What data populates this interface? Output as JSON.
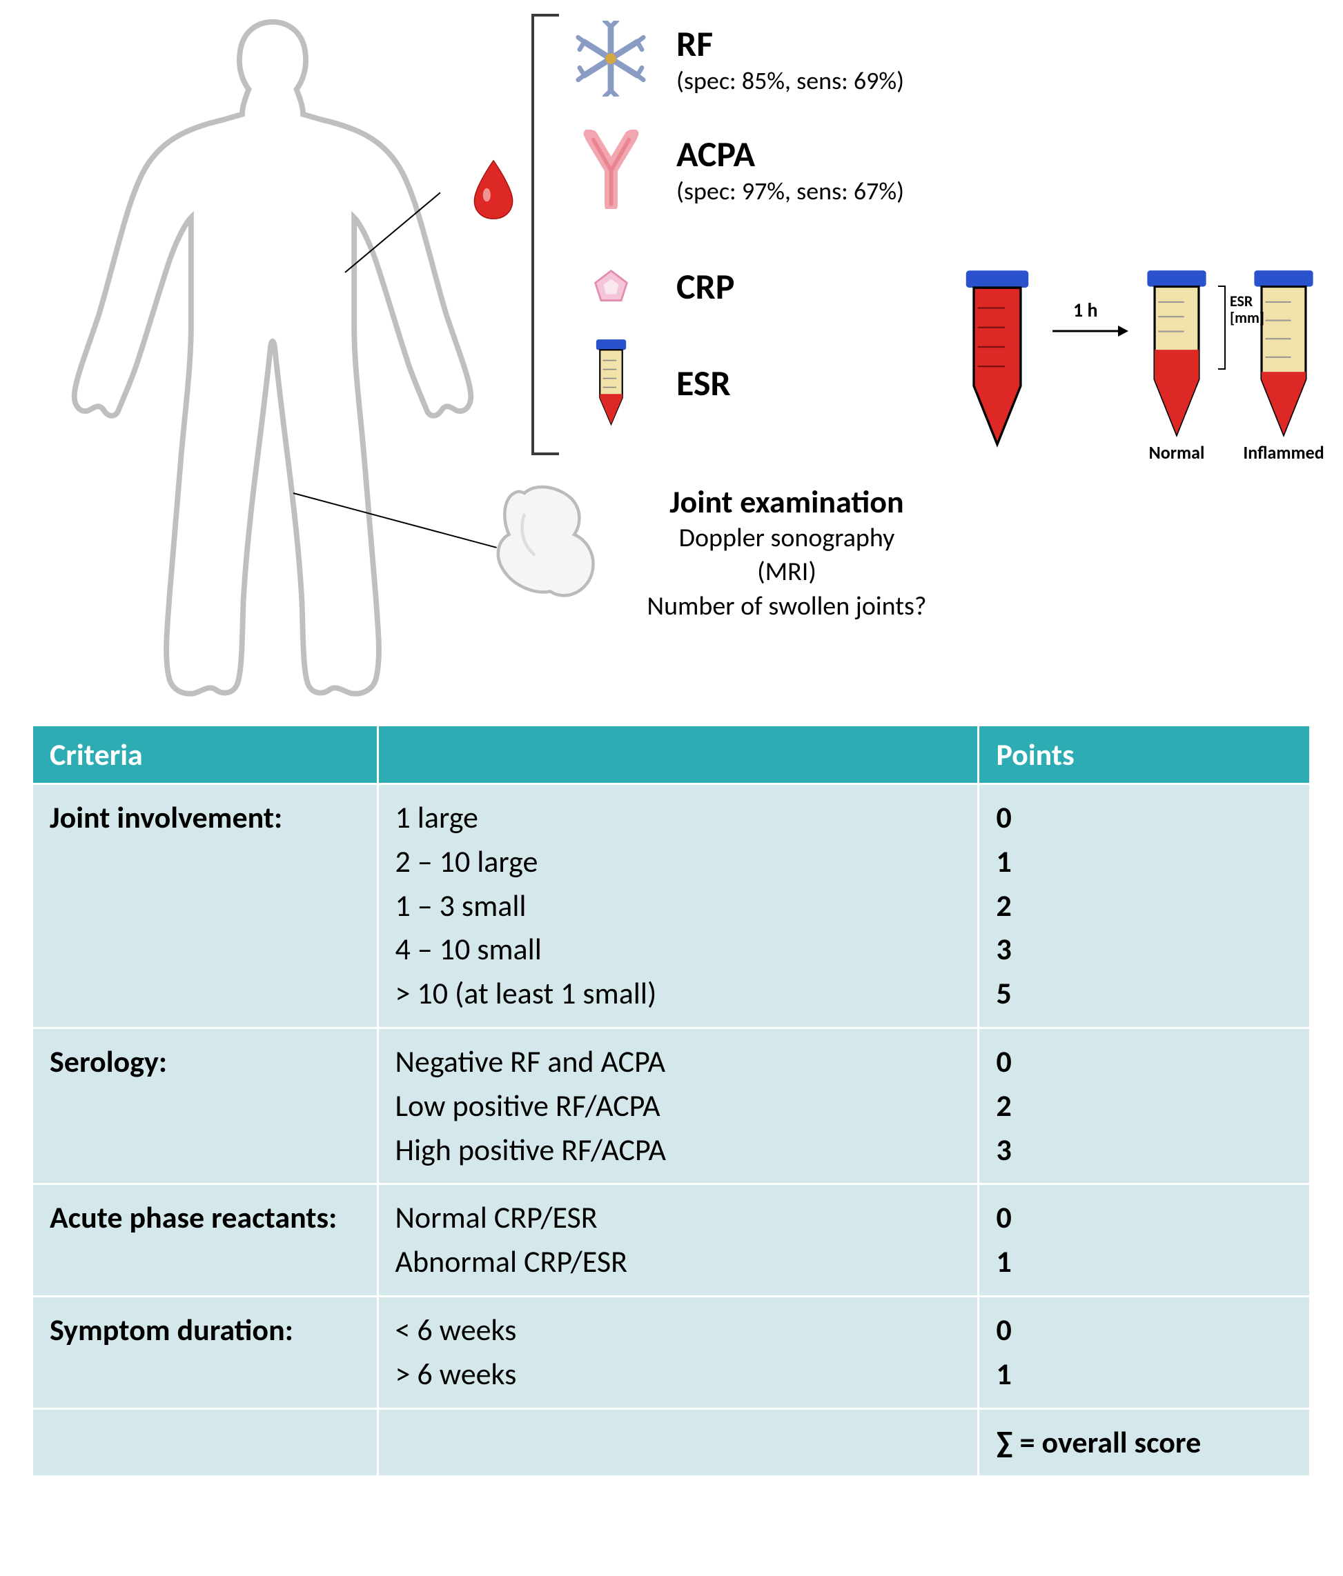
{
  "colors": {
    "table_header_bg": "#2eacb3",
    "table_header_text": "#ffffff",
    "table_cell_bg": "#d4e8eb",
    "table_cell_text": "#000000",
    "table_border": "#ffffff",
    "body_outline": "#cccccc",
    "blood_red": "#de2826",
    "tube_cap": "#2952cc",
    "tube_fluid": "#f0e2a8",
    "antibody_blue": "#8a9bc4",
    "antibody_pink": "#f2a7b0",
    "crp_pink": "#f4c4d8"
  },
  "markers": {
    "rf": {
      "title": "RF",
      "sub": "(spec: 85%, sens: 69%)"
    },
    "acpa": {
      "title": "ACPA",
      "sub": "(spec: 97%, sens: 67%)"
    },
    "crp": {
      "title": "CRP",
      "sub": ""
    },
    "esr": {
      "title": "ESR",
      "sub": ""
    }
  },
  "esr_diagram": {
    "time_label": "1 h",
    "measure_label": "ESR\n[mm]",
    "normal_label": "Normal",
    "inflamed_label": "Inflammed"
  },
  "joint_exam": {
    "title": "Joint examination",
    "line1": "Doppler sonography",
    "line2": "(MRI)",
    "line3": "Number of swollen joints?"
  },
  "table": {
    "headers": {
      "criteria": "Criteria",
      "middle": "",
      "points": "Points"
    },
    "rows": [
      {
        "label": "Joint involvement:",
        "items": [
          {
            "desc": "1 large",
            "points": "0"
          },
          {
            "desc": "2 – 10 large",
            "points": "1"
          },
          {
            "desc": "1 – 3 small",
            "points": "2"
          },
          {
            "desc": "4 – 10 small",
            "points": "3"
          },
          {
            "desc": "> 10 (at least 1 small)",
            "points": "5"
          }
        ]
      },
      {
        "label": "Serology:",
        "items": [
          {
            "desc": "Negative RF and ACPA",
            "points": "0"
          },
          {
            "desc": "Low positive RF/ACPA",
            "points": "2"
          },
          {
            "desc": "High positive RF/ACPA",
            "points": "3"
          }
        ]
      },
      {
        "label": "Acute phase reactants:",
        "items": [
          {
            "desc": "Normal CRP/ESR",
            "points": "0"
          },
          {
            "desc": "Abnormal CRP/ESR",
            "points": "1"
          }
        ]
      },
      {
        "label": "Symptom duration:",
        "items": [
          {
            "desc": "< 6 weeks",
            "points": "0"
          },
          {
            "desc": "> 6 weeks",
            "points": "1"
          }
        ]
      }
    ],
    "footer": "∑ = overall score"
  }
}
